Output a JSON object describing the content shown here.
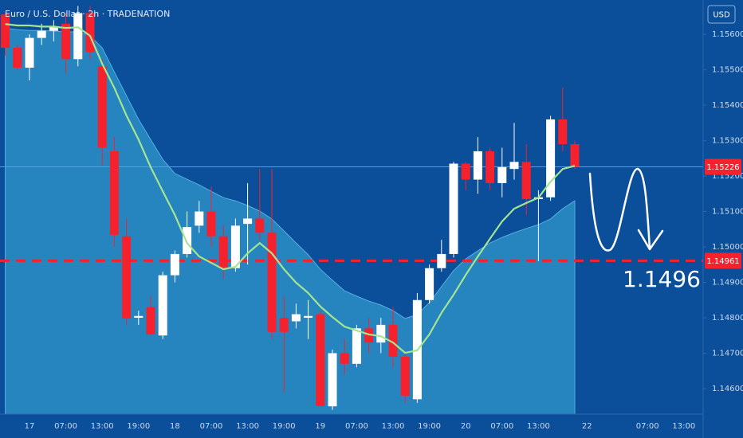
{
  "chart_data": {
    "type": "candlestick",
    "title": "Euro / U.S. Dollar · 2h · TRADENATION",
    "currency_button": "USD",
    "categories": [
      null,
      null,
      "17",
      null,
      null,
      "07:00",
      null,
      null,
      "13:00",
      null,
      null,
      "19:00",
      null,
      null,
      "18",
      null,
      null,
      "07:00",
      null,
      null,
      "13:00",
      null,
      null,
      "19:00",
      null,
      null,
      "19",
      null,
      null,
      "07:00",
      null,
      null,
      "13:00",
      null,
      null,
      "19:00",
      null,
      null,
      "20",
      null,
      null,
      "07:00",
      null,
      null,
      "13:00",
      null,
      null,
      null,
      "22",
      null,
      null,
      null,
      null,
      "07:00",
      null,
      null,
      "13:00",
      null
    ],
    "open": [
      1.15656,
      1.15562,
      1.15506,
      1.1559,
      1.1561,
      1.1563,
      1.1553,
      1.1566,
      1.1551,
      1.1527,
      1.1503,
      1.148,
      1.1483,
      1.1475,
      1.1492,
      1.1498,
      1.1506,
      1.151,
      1.1503,
      1.1494,
      1.15065,
      1.1508,
      1.1504,
      1.148,
      1.1479,
      1.148,
      1.1481,
      1.1455,
      1.147,
      1.1467,
      1.1477,
      1.1473,
      1.1478,
      1.1469,
      1.1457,
      1.1485,
      1.1494,
      1.1498,
      1.15235,
      1.1519,
      1.1527,
      1.1518,
      1.1522,
      1.1524,
      1.15135,
      1.1514,
      1.1536,
      1.1529,
      null,
      null,
      null,
      null,
      null,
      null,
      null,
      null,
      null,
      null
    ],
    "high": [
      1.1566,
      1.1557,
      1.156,
      1.1563,
      1.1564,
      1.1566,
      1.1568,
      1.1568,
      1.1553,
      1.1531,
      1.1508,
      1.1482,
      1.1486,
      1.1493,
      1.1499,
      1.151,
      1.1513,
      1.1517,
      1.1506,
      1.1508,
      1.1518,
      1.1522,
      1.1522,
      1.1486,
      1.1484,
      1.1485,
      1.1482,
      1.1471,
      1.1474,
      1.1478,
      1.148,
      1.148,
      1.1483,
      1.147,
      1.1487,
      1.1495,
      1.1502,
      1.1524,
      1.1524,
      1.1531,
      1.1528,
      1.1528,
      1.1535,
      1.1529,
      1.1516,
      1.1537,
      1.1545,
      1.153,
      null,
      null,
      null,
      null,
      null,
      null,
      null,
      null,
      null,
      null
    ],
    "low": [
      1.1554,
      1.155,
      1.1547,
      1.1557,
      1.1558,
      1.1549,
      1.1551,
      1.1553,
      1.1523,
      1.15,
      1.1478,
      1.1478,
      1.1475,
      1.1474,
      1.149,
      1.1497,
      1.1504,
      1.15,
      1.1491,
      1.1493,
      1.1495,
      1.1502,
      1.1474,
      1.1459,
      1.1477,
      1.1474,
      1.1455,
      1.1454,
      1.1464,
      1.1466,
      1.147,
      1.147,
      1.1466,
      1.1456,
      1.1456,
      1.1484,
      1.1493,
      1.1497,
      1.1516,
      1.1515,
      1.1516,
      1.1514,
      1.1519,
      1.1509,
      1.1496,
      1.1513,
      1.1527,
      1.1522,
      null,
      null,
      null,
      null,
      null,
      null,
      null,
      null,
      null,
      null
    ],
    "close": [
      1.15562,
      1.15506,
      1.1559,
      1.1561,
      1.1562,
      1.1553,
      1.1566,
      1.1555,
      1.1528,
      1.15034,
      1.14798,
      1.14805,
      1.14753,
      1.1492,
      1.1498,
      1.15056,
      1.151,
      1.1503,
      1.1494,
      1.1506,
      1.1508,
      1.1504,
      1.1476,
      1.1476,
      1.1481,
      1.14805,
      1.14551,
      1.147,
      1.1467,
      1.1477,
      1.1473,
      1.1478,
      1.1469,
      1.1458,
      1.1485,
      1.1494,
      1.1498,
      1.15235,
      1.1519,
      1.1527,
      1.1518,
      1.15225,
      1.1524,
      1.15135,
      1.1514,
      1.1536,
      1.1529,
      1.15226,
      null,
      null,
      null,
      null,
      null,
      null,
      null,
      null,
      null,
      null
    ],
    "up_color": "#ffffff",
    "down_color": "#f5222d",
    "ma": {
      "color": "#a6e58f",
      "values": [
        1.15629,
        1.15625,
        1.15625,
        1.15622,
        1.15622,
        1.15618,
        1.1562,
        1.15596,
        1.15517,
        1.15449,
        1.15371,
        1.15303,
        1.15225,
        1.15157,
        1.1509,
        1.15011,
        1.14973,
        1.14955,
        1.14937,
        1.14944,
        1.14982,
        1.15011,
        1.14982,
        1.14937,
        1.14899,
        1.1487,
        1.14832,
        1.14802,
        1.14775,
        1.14764,
        1.14753,
        1.14748,
        1.1473,
        1.14701,
        1.14708,
        1.14753,
        1.14814,
        1.14865,
        1.14921,
        1.14973,
        1.15023,
        1.15072,
        1.15108,
        1.15124,
        1.15139,
        1.15184,
        1.1522,
        1.15229,
        null,
        null,
        null,
        null,
        null,
        null,
        null,
        null,
        null,
        null
      ]
    },
    "band": {
      "color": "#2b8ec6",
      "values": [
        1.15618,
        1.15613,
        1.15611,
        1.15611,
        1.15609,
        1.15607,
        1.15607,
        1.15596,
        1.15562,
        1.15494,
        1.15427,
        1.1536,
        1.15303,
        1.15247,
        1.15207,
        1.15191,
        1.15175,
        1.15157,
        1.15139,
        1.1513,
        1.15117,
        1.15101,
        1.15079,
        1.15045,
        1.15011,
        1.14978,
        1.14937,
        1.14906,
        1.14876,
        1.14861,
        1.14847,
        1.14836,
        1.1482,
        1.14798,
        1.14809,
        1.14843,
        1.14888,
        1.14933,
        1.14966,
        1.14989,
        1.15011,
        1.15027,
        1.1504,
        1.15052,
        1.15063,
        1.15079,
        1.15108,
        1.1513,
        null,
        null,
        null,
        null,
        null,
        null,
        null,
        null,
        null,
        null
      ]
    },
    "ylim": [
      1.14528,
      1.15697
    ],
    "yticks": [
      {
        "value": 1.156,
        "label": "1.15600"
      },
      {
        "value": 1.155,
        "label": "1.15500"
      },
      {
        "value": 1.154,
        "label": "1.15400"
      },
      {
        "value": 1.153,
        "label": "1.15300"
      },
      {
        "value": 1.152,
        "label": "1.15200"
      },
      {
        "value": 1.151,
        "label": "1.15100"
      },
      {
        "value": 1.15,
        "label": "1.15000"
      },
      {
        "value": 1.149,
        "label": "1.14900"
      },
      {
        "value": 1.148,
        "label": "1.14800"
      },
      {
        "value": 1.147,
        "label": "1.14700"
      },
      {
        "value": 1.146,
        "label": "1.14600"
      }
    ],
    "price_lines": [
      {
        "value": 1.15226,
        "label": "1.15226",
        "color": "#f5222d",
        "dashed": false
      },
      {
        "value": 1.14961,
        "label": "1.14961",
        "color": "#f5222d",
        "dashed": true
      }
    ],
    "annotation": "1.1496"
  }
}
